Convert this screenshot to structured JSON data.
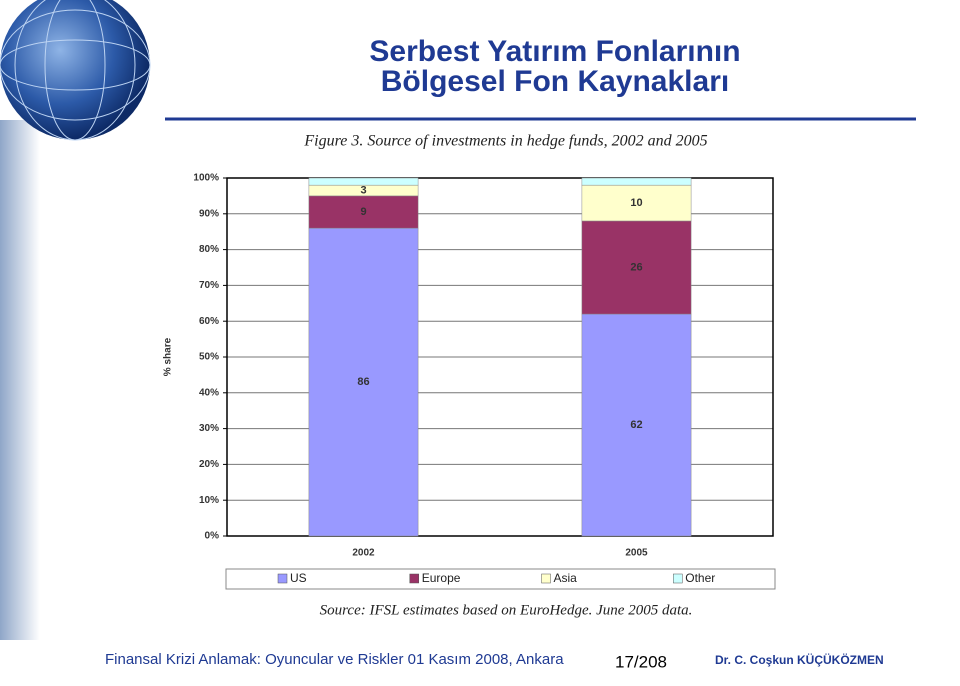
{
  "slide": {
    "title_lines": [
      "Serbest Yatırım Fonlarının",
      "Bölgesel Fon Kaynakları"
    ],
    "footer": "Finansal Krizi Anlamak: Oyuncular ve Riskler 01 Kasım 2008, Ankara",
    "page": "17/208",
    "author": "Dr. C. Coşkun KÜÇÜKÖZMEN"
  },
  "chart_data": {
    "type": "stacked_bar",
    "title": "Figure 3. Source of investments in hedge funds, 2002 and 2005",
    "y_label": "% share",
    "source": "Source: IFSL estimates based on EuroHedge. June 2005 data.",
    "categories": [
      "2002",
      "2005"
    ],
    "series": [
      {
        "name": "US",
        "color": "#9999ff",
        "values": [
          86,
          62
        ],
        "show_values": true
      },
      {
        "name": "Europe",
        "color": "#993366",
        "values": [
          9,
          26
        ],
        "show_values": true
      },
      {
        "name": "Asia",
        "color": "#ffffcc",
        "values": [
          3,
          10
        ],
        "show_values": true
      },
      {
        "name": "Other",
        "color": "#ccffff",
        "values": [
          2,
          2
        ],
        "show_values": false
      }
    ],
    "ylim": [
      0,
      100
    ],
    "yticks": [
      {
        "value": 0,
        "label": "0%"
      },
      {
        "value": 10,
        "label": "10%"
      },
      {
        "value": 20,
        "label": "20%"
      },
      {
        "value": 30,
        "label": "30%"
      },
      {
        "value": 40,
        "label": "40%"
      },
      {
        "value": 50,
        "label": "50%"
      },
      {
        "value": 60,
        "label": "60%"
      },
      {
        "value": 70,
        "label": "70%"
      },
      {
        "value": 80,
        "label": "80%"
      },
      {
        "value": 90,
        "label": "90%"
      },
      {
        "value": 100,
        "label": "100%"
      }
    ],
    "grid": true,
    "legend": "bottom"
  }
}
